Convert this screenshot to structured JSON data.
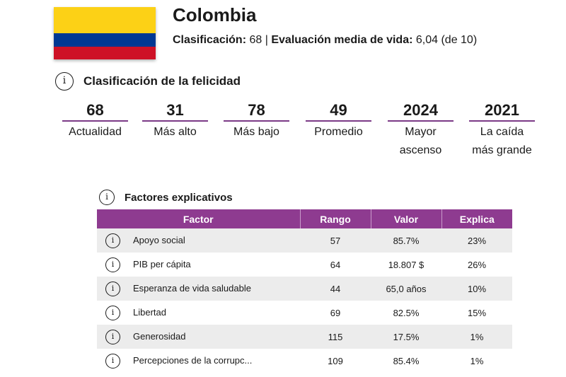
{
  "country": {
    "name": "Colombia",
    "rank_label": "Clasificación:",
    "rank": "68",
    "separator": "|",
    "life_label": "Evaluación media de vida:",
    "life_value": "6,04 (de 10)",
    "flag_colors": [
      "#fcd116",
      "#003893",
      "#ce1126"
    ]
  },
  "happiness": {
    "heading": "Clasificación de la felicidad",
    "stats": [
      {
        "value": "68",
        "label": "Actualidad"
      },
      {
        "value": "31",
        "label": "Más alto"
      },
      {
        "value": "78",
        "label": "Más bajo"
      },
      {
        "value": "49",
        "label": "Promedio"
      },
      {
        "value": "2024",
        "label": "Mayor ascenso"
      },
      {
        "value": "2021",
        "label": "La caída más grande"
      }
    ]
  },
  "factors": {
    "heading": "Factores explicativos",
    "columns": [
      "Factor",
      "Rango",
      "Valor",
      "Explica"
    ],
    "rows": [
      {
        "factor": "Apoyo social",
        "rank": "57",
        "value": "85.7%",
        "explains": "23%"
      },
      {
        "factor": "PIB per cápita",
        "rank": "64",
        "value": "18.807 $",
        "explains": "26%"
      },
      {
        "factor": "Esperanza de vida saludable",
        "rank": "44",
        "value": "65,0 años",
        "explains": "10%"
      },
      {
        "factor": "Libertad",
        "rank": "69",
        "value": "82.5%",
        "explains": "15%"
      },
      {
        "factor": "Generosidad",
        "rank": "115",
        "value": "17.5%",
        "explains": "1%"
      },
      {
        "factor": "Percepciones de la corrupc...",
        "rank": "109",
        "value": "85.4%",
        "explains": "1%"
      }
    ]
  },
  "accent": "#8e3b90"
}
